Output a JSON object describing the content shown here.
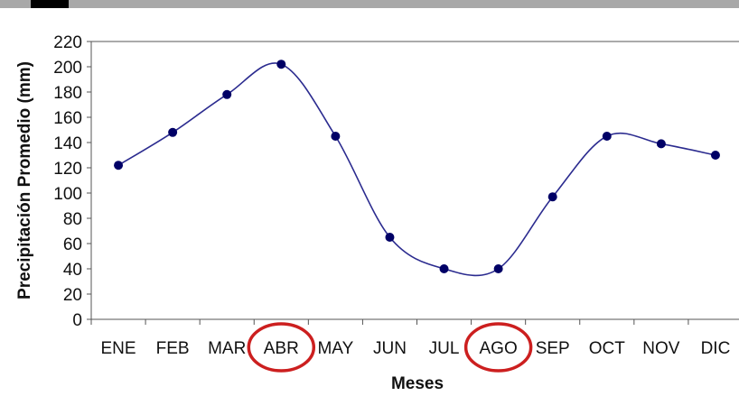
{
  "chart_data": {
    "type": "line",
    "title": "",
    "xlabel": "Meses",
    "ylabel": "Precipitación Promedio (mm)",
    "categories": [
      "ENE",
      "FEB",
      "MAR",
      "ABR",
      "MAY",
      "JUN",
      "JUL",
      "AGO",
      "SEP",
      "OCT",
      "NOV",
      "DIC"
    ],
    "series": [
      {
        "values": [
          122,
          148,
          178,
          202,
          145,
          65,
          40,
          40,
          97,
          145,
          139,
          130
        ]
      }
    ],
    "ylim": [
      0,
      220
    ],
    "yticks": [
      0,
      20,
      40,
      60,
      80,
      100,
      120,
      140,
      160,
      180,
      200,
      220
    ],
    "grid": false,
    "highlighted_categories": [
      "ABR",
      "AGO"
    ],
    "colors": {
      "line": "#2b2b8f",
      "marker": "#000066",
      "highlight": "#cc1f1f",
      "header_bar": "#a8a8a8",
      "header_block": "#000000"
    }
  }
}
